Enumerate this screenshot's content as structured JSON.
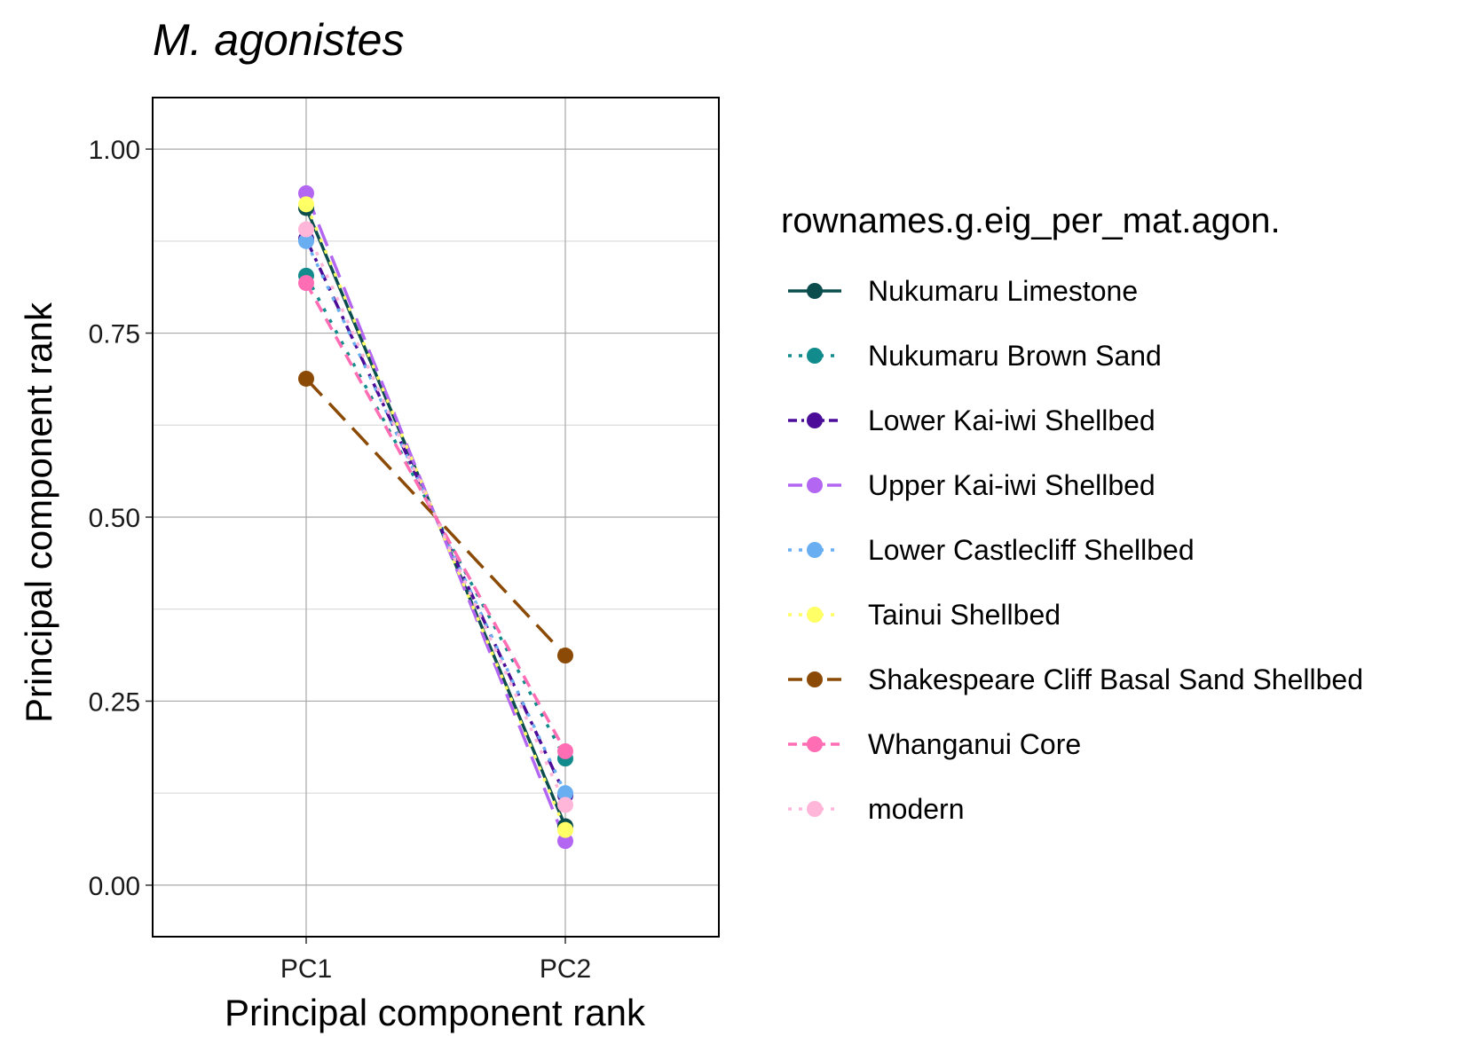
{
  "chart_data": {
    "type": "line",
    "title": "M. agonistes",
    "xlabel": "Principal component rank",
    "ylabel": "Principal component rank",
    "categories": [
      "PC1",
      "PC2"
    ],
    "ylim": [
      -0.07,
      1.07
    ],
    "yticks": [
      0.0,
      0.25,
      0.5,
      0.75,
      1.0
    ],
    "ytick_labels": [
      "0.00",
      "0.25",
      "0.50",
      "0.75",
      "1.00"
    ],
    "grid": true,
    "legend": {
      "title": "rownames.g.eig_per_mat.agon.",
      "placement": "right"
    },
    "series": [
      {
        "name": "Nukumaru Limestone",
        "values": [
          0.92,
          0.08
        ],
        "color": "#0b4d4d",
        "dash": "solid"
      },
      {
        "name": "Nukumaru Brown Sand",
        "values": [
          0.828,
          0.172
        ],
        "color": "#118b8b",
        "dash": "dotted"
      },
      {
        "name": "Lower Kai-iwi Shellbed",
        "values": [
          0.878,
          0.122
        ],
        "color": "#4b0d99",
        "dash": "dashdot"
      },
      {
        "name": "Upper Kai-iwi Shellbed",
        "values": [
          0.94,
          0.06
        ],
        "color": "#b366f2",
        "dash": "longdash"
      },
      {
        "name": "Lower Castlecliff Shellbed",
        "values": [
          0.875,
          0.125
        ],
        "color": "#6aaef2",
        "dash": "dotted"
      },
      {
        "name": "Tainui Shellbed",
        "values": [
          0.925,
          0.075
        ],
        "color": "#ffff66",
        "dash": "dotted"
      },
      {
        "name": "Shakespeare Cliff Basal Sand Shellbed",
        "values": [
          0.688,
          0.312
        ],
        "color": "#8b4a05",
        "dash": "longdash"
      },
      {
        "name": "Whanganui Core",
        "values": [
          0.818,
          0.182
        ],
        "color": "#ff6eb4",
        "dash": "dashed"
      },
      {
        "name": "modern",
        "values": [
          0.891,
          0.109
        ],
        "color": "#ffb6d9",
        "dash": "dotted"
      }
    ]
  }
}
